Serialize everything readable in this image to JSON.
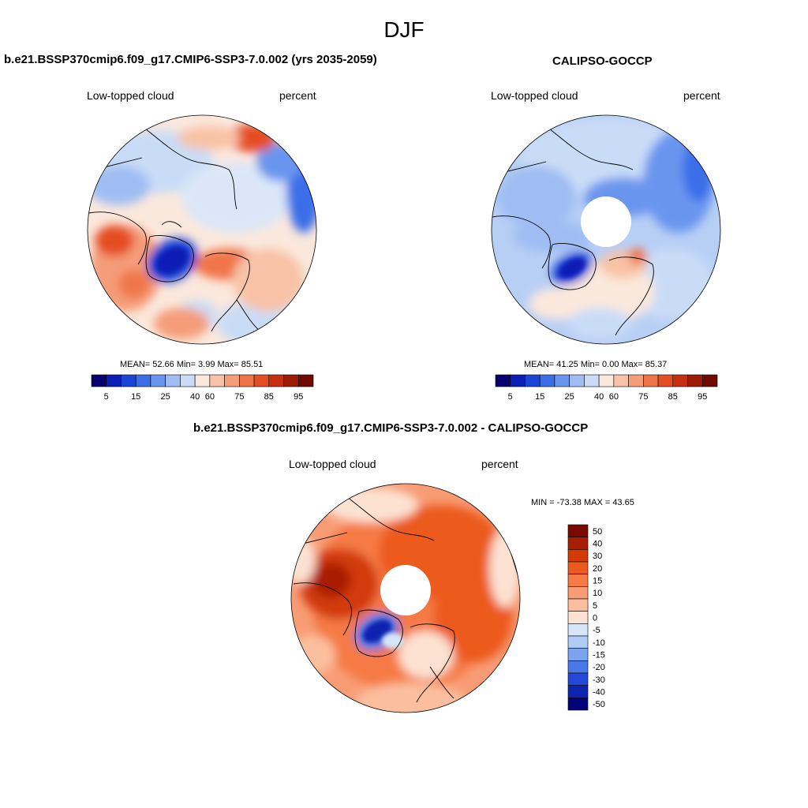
{
  "figure": {
    "title": "DJF"
  },
  "panels": [
    {
      "title": "b.e21.BSSP370cmip6.f09_g17.CMIP6-SSP3-7.0.002 (yrs 2035-2059)",
      "left_label": "Low-topped cloud",
      "right_label": "percent",
      "stats": "MEAN=  52.66  Min=   3.99  Max=  85.51"
    },
    {
      "title": "CALIPSO-GOCCP",
      "left_label": "Low-topped cloud",
      "right_label": "percent",
      "stats": "MEAN=  41.25  Min=   0.00  Max=  85.37"
    },
    {
      "title": "b.e21.BSSP370cmip6.f09_g17.CMIP6-SSP3-7.0.002 - CALIPSO-GOCCP",
      "left_label": "Low-topped cloud",
      "right_label": "percent",
      "stats": "MIN = -73.38 MAX =  43.65"
    }
  ],
  "colorbar_horizontal": {
    "ticks": [
      "5",
      "15",
      "25",
      "40",
      "60",
      "75",
      "85",
      "95"
    ],
    "colors": [
      "#08006e",
      "#0a1fb5",
      "#1a45d6",
      "#3b6ee8",
      "#6a95ef",
      "#9fbdf3",
      "#c9dcf7",
      "#fbe8dc",
      "#f8c2a6",
      "#f59c78",
      "#f07448",
      "#e44e24",
      "#c7300f",
      "#9b1b04",
      "#6e0b00"
    ]
  },
  "colorbar_vertical": {
    "labels": [
      "50",
      "40",
      "30",
      "20",
      "15",
      "10",
      "5",
      "0",
      "-5",
      "-10",
      "-15",
      "-20",
      "-30",
      "-40",
      "-50"
    ],
    "colors": [
      "#7a0a00",
      "#a81e02",
      "#d23a08",
      "#ec5a1f",
      "#f57a45",
      "#f89c75",
      "#fbbf9f",
      "#fde2d2",
      "#d6e6f9",
      "#b0ccf5",
      "#7aa4ee",
      "#4a78e6",
      "#2448d8",
      "#0c24b0",
      "#04047a"
    ]
  }
}
